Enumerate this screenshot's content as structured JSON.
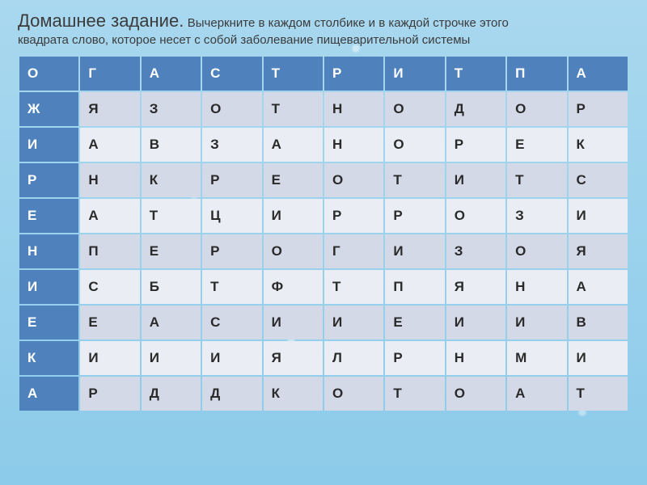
{
  "title": {
    "main": "Домашнее задание.",
    "rest1": "Вычеркните в каждом столбике и в каждой строчке этого",
    "rest2": "квадрата слово, которое несет с собой заболевание пищеварительной системы"
  },
  "grid": {
    "colors": {
      "header_bg": "#4f81bd",
      "header_fg": "#ffffff",
      "row_even": "#d3d9e6",
      "row_odd": "#eaeef4",
      "cell_fg": "#2a2a2a"
    },
    "rows": [
      {
        "rowHeader": false,
        "cells": [
          "О",
          "Г",
          "А",
          "С",
          "Т",
          "Р",
          "И",
          "Т",
          "П",
          "А"
        ]
      },
      {
        "rowHeader": true,
        "cells": [
          "Ж",
          "Я",
          "З",
          "О",
          "Т",
          "Н",
          "О",
          "Д",
          "О",
          "Р"
        ]
      },
      {
        "rowHeader": true,
        "cells": [
          "И",
          "А",
          "В",
          "З",
          "А",
          "Н",
          "О",
          "Р",
          "Е",
          "К"
        ]
      },
      {
        "rowHeader": true,
        "cells": [
          "Р",
          "Н",
          "К",
          "Р",
          "Е",
          "О",
          "Т",
          "И",
          "Т",
          "С"
        ]
      },
      {
        "rowHeader": true,
        "cells": [
          "Е",
          "А",
          "Т",
          "Ц",
          "И",
          "Р",
          "Р",
          "О",
          "З",
          "И"
        ]
      },
      {
        "rowHeader": true,
        "cells": [
          "Н",
          "П",
          "Е",
          "Р",
          "О",
          "Г",
          "И",
          "З",
          "О",
          "Я"
        ]
      },
      {
        "rowHeader": true,
        "cells": [
          "И",
          "С",
          "Б",
          "Т",
          "Ф",
          "Т",
          "П",
          "Я",
          "Н",
          "А"
        ]
      },
      {
        "rowHeader": true,
        "cells": [
          "Е",
          "Е",
          "А",
          "С",
          "И",
          "И",
          "Е",
          "И",
          "И",
          "В"
        ]
      },
      {
        "rowHeader": true,
        "cells": [
          "К",
          "И",
          "И",
          "И",
          "Я",
          "Л",
          "Р",
          "Н",
          "М",
          "И"
        ]
      },
      {
        "rowHeader": true,
        "cells": [
          "А",
          "Р",
          "Д",
          "Д",
          "К",
          "О",
          "Т",
          "О",
          "А",
          "Т"
        ]
      }
    ]
  }
}
